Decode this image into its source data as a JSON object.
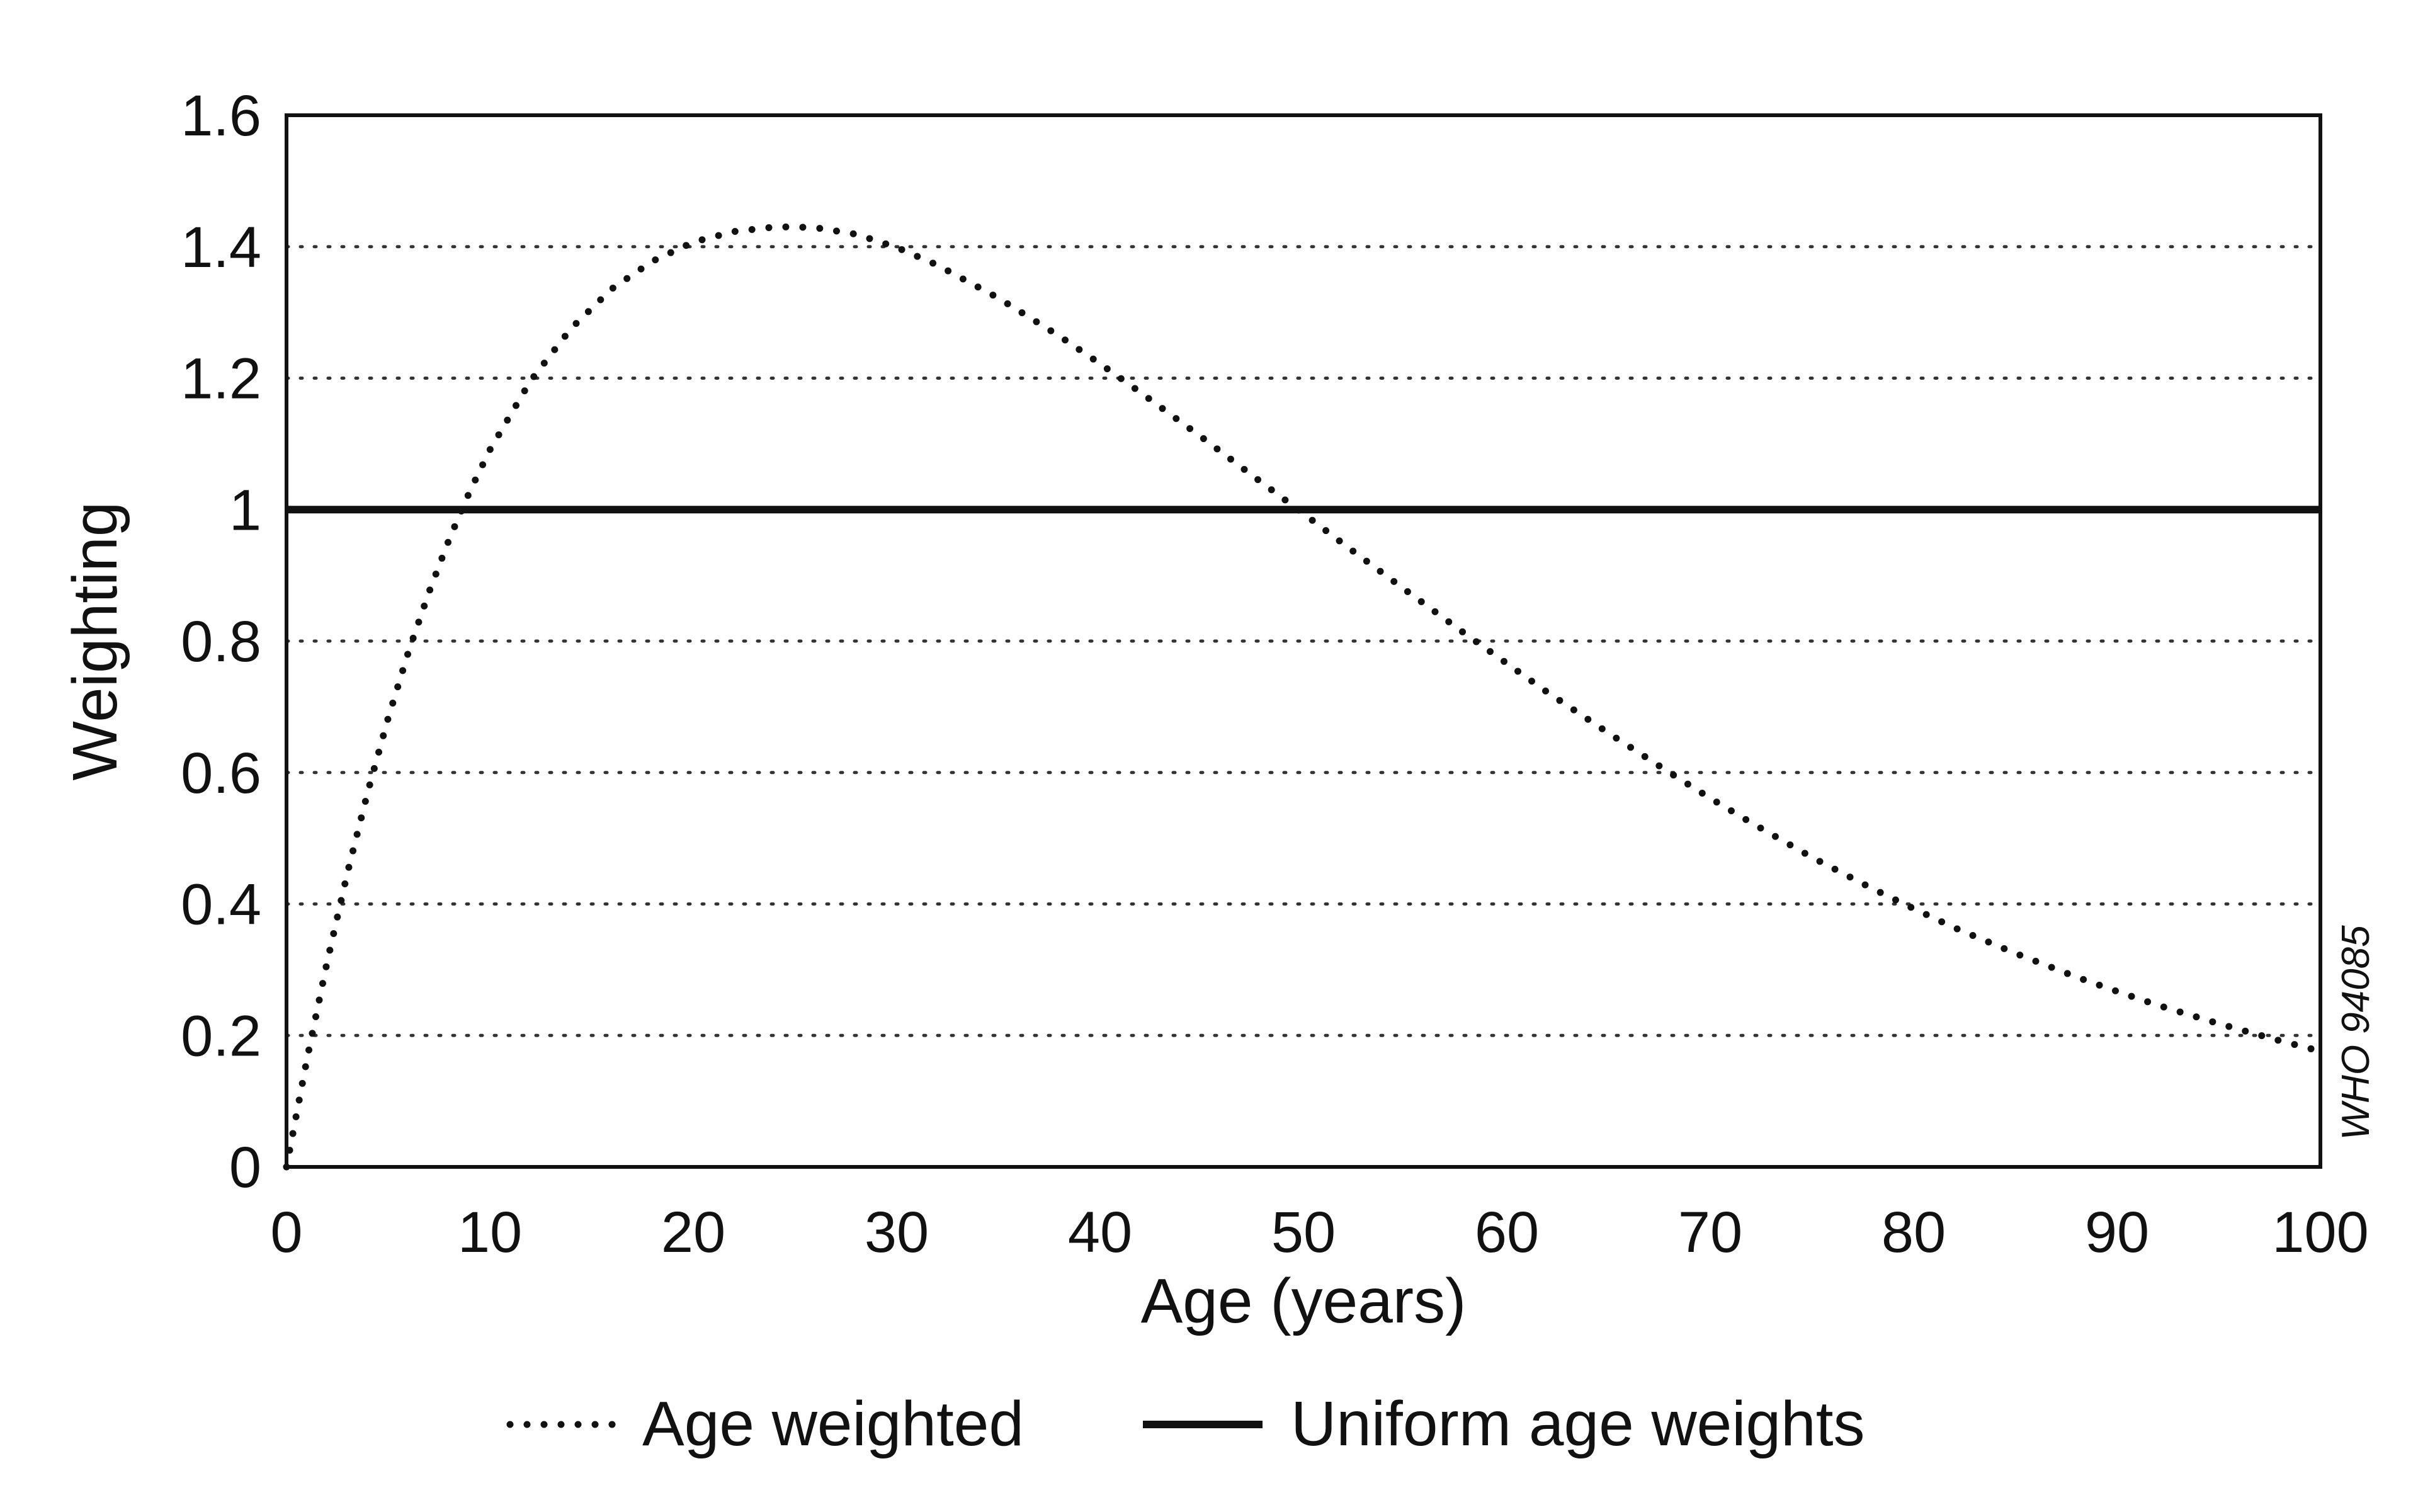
{
  "chart_data": {
    "type": "line",
    "xlabel": "Age (years)",
    "ylabel": "Weighting",
    "xlim": [
      0,
      100
    ],
    "ylim": [
      0,
      1.6
    ],
    "x_ticks": [
      "0",
      "10",
      "20",
      "30",
      "40",
      "50",
      "60",
      "70",
      "80",
      "90",
      "100"
    ],
    "y_ticks": [
      "0",
      "0.2",
      "0.4",
      "0.6",
      "0.8",
      "1",
      "1.2",
      "1.4",
      "1.6"
    ],
    "grid": "horizontal dotted",
    "legend_position": "bottom",
    "series": [
      {
        "name": "Age weighted",
        "style": "dotted",
        "color": "#111111",
        "x": [
          0,
          1,
          2,
          3,
          4,
          5,
          6,
          7,
          8,
          9,
          10,
          12,
          14,
          16,
          18,
          20,
          22,
          24,
          25,
          26,
          28,
          30,
          32,
          35,
          38,
          40,
          42,
          45,
          48,
          50,
          52,
          55,
          58,
          60,
          62,
          65,
          68,
          70,
          72,
          75,
          78,
          80,
          82,
          85,
          88,
          90,
          92,
          95,
          98,
          100
        ],
        "y": [
          0,
          0.163,
          0.312,
          0.448,
          0.571,
          0.683,
          0.784,
          0.874,
          0.955,
          1.027,
          1.091,
          1.196,
          1.276,
          1.336,
          1.378,
          1.407,
          1.423,
          1.43,
          1.43,
          1.429,
          1.419,
          1.399,
          1.372,
          1.322,
          1.264,
          1.222,
          1.178,
          1.11,
          1.04,
          0.994,
          0.947,
          0.878,
          0.81,
          0.766,
          0.722,
          0.66,
          0.6,
          0.561,
          0.524,
          0.471,
          0.423,
          0.393,
          0.364,
          0.325,
          0.289,
          0.267,
          0.246,
          0.218,
          0.192,
          0.176
        ]
      },
      {
        "name": "Uniform age weights",
        "style": "solid",
        "color": "#111111",
        "x": [
          0,
          100
        ],
        "y": [
          1,
          1
        ]
      }
    ],
    "annotation": "WHO 94085"
  }
}
